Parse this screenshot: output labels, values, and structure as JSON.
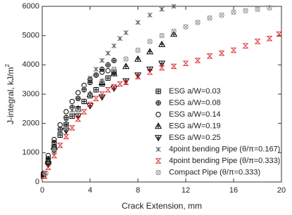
{
  "chart_data": {
    "type": "scatter",
    "xlabel": "Crack Extension, mm",
    "ylabel": "J-integral, kJ/m",
    "ylabel_sup": "2",
    "xlim": [
      0,
      20
    ],
    "xticks": [
      0,
      4,
      8,
      12,
      16,
      20
    ],
    "ylim": [
      0,
      6000
    ],
    "yticks": [
      0,
      1000,
      2000,
      3000,
      4000,
      5000,
      6000
    ],
    "grid": false,
    "legend": "lower right",
    "series": [
      {
        "name": "ESG a/W=0.03",
        "color": "#000000",
        "marker": "square-plus",
        "x": [
          0.1,
          0.5,
          1,
          1.5,
          2,
          2.5,
          3,
          3.5,
          4,
          4.5,
          5,
          5.5,
          6
        ],
        "values": [
          200,
          700,
          1200,
          1600,
          1950,
          2250,
          2500,
          2750,
          2950,
          3150,
          3350,
          3550,
          3750
        ]
      },
      {
        "name": "ESG a/W=0.08",
        "color": "#000000",
        "marker": "circle-plus",
        "x": [
          0.1,
          0.5,
          1,
          1.5,
          2,
          2.5,
          3,
          3.5,
          4,
          4.5,
          5,
          5.5,
          6
        ],
        "values": [
          250,
          800,
          1350,
          1800,
          2200,
          2550,
          2850,
          3150,
          3400,
          3650,
          3850,
          4000,
          4150
        ]
      },
      {
        "name": "ESG a/W=0.14",
        "color": "#000000",
        "marker": "circle",
        "x": [
          0.1,
          0.5,
          1,
          1.5,
          2,
          2.5,
          3,
          3.5,
          4,
          4.5,
          5,
          5.5,
          6
        ],
        "values": [
          300,
          900,
          1450,
          1950,
          2400,
          2750,
          3050,
          3300,
          3500,
          3650,
          3750,
          3800,
          3850
        ]
      },
      {
        "name": "ESG a/W=0.19",
        "color": "#000000",
        "marker": "triangle-plus",
        "x": [
          0.5,
          1,
          2,
          3,
          4,
          5,
          6,
          7,
          8,
          9,
          10,
          11
        ],
        "values": [
          700,
          1200,
          1900,
          2500,
          3000,
          3400,
          3700,
          3950,
          4200,
          4450,
          4700,
          5050
        ]
      },
      {
        "name": "ESG a/W=0.25",
        "color": "#000000",
        "marker": "triangle-down-plus",
        "x": [
          0.5,
          1,
          2,
          3,
          4,
          5,
          6,
          7,
          8,
          9,
          10
        ],
        "values": [
          600,
          1050,
          1750,
          2250,
          2600,
          2900,
          3200,
          3450,
          3650,
          3850,
          4050
        ]
      },
      {
        "name": "4point bending Pipe (θ/π=0.167)",
        "color": "#555555",
        "marker": "asterisk",
        "x": [
          0.2,
          0.5,
          1,
          1.5,
          2,
          2.5,
          3,
          3.5,
          4,
          4.5,
          5,
          5.5,
          6,
          6.5,
          7,
          8,
          9,
          10,
          11
        ],
        "values": [
          300,
          700,
          1200,
          1650,
          2050,
          2450,
          2850,
          3200,
          3550,
          3850,
          4150,
          4400,
          4650,
          4900,
          5100,
          5450,
          5700,
          5900,
          6000
        ]
      },
      {
        "name": "4point bending Pipe (θ/π=0.333)",
        "color": "#e03030",
        "marker": "hourglass",
        "x": [
          0.2,
          0.5,
          1,
          1.5,
          2,
          2.5,
          3,
          3.5,
          4,
          4.5,
          5,
          5.5,
          6,
          6.5,
          7,
          8,
          9,
          10,
          11,
          12,
          13,
          14,
          15,
          16,
          17,
          18,
          19,
          19.8
        ],
        "values": [
          200,
          500,
          900,
          1250,
          1550,
          1850,
          2150,
          2400,
          2650,
          2850,
          3000,
          3150,
          3250,
          3350,
          3400,
          3600,
          3750,
          3900,
          3950,
          4050,
          4150,
          4300,
          4400,
          4500,
          4650,
          4800,
          4900,
          5050
        ]
      },
      {
        "name": "Compact Pipe (θ/π=0.333)",
        "color": "#999999",
        "marker": "circle-x",
        "x": [
          0.3,
          1,
          2,
          3,
          4,
          5,
          6,
          7,
          8,
          9,
          10,
          11,
          12,
          13,
          14,
          15,
          16,
          17,
          18,
          19
        ],
        "values": [
          300,
          1050,
          1850,
          2450,
          3000,
          3450,
          3850,
          4200,
          4500,
          4800,
          5000,
          5150,
          5300,
          5450,
          5600,
          5700,
          5800,
          5850,
          5900,
          5950
        ]
      }
    ]
  }
}
